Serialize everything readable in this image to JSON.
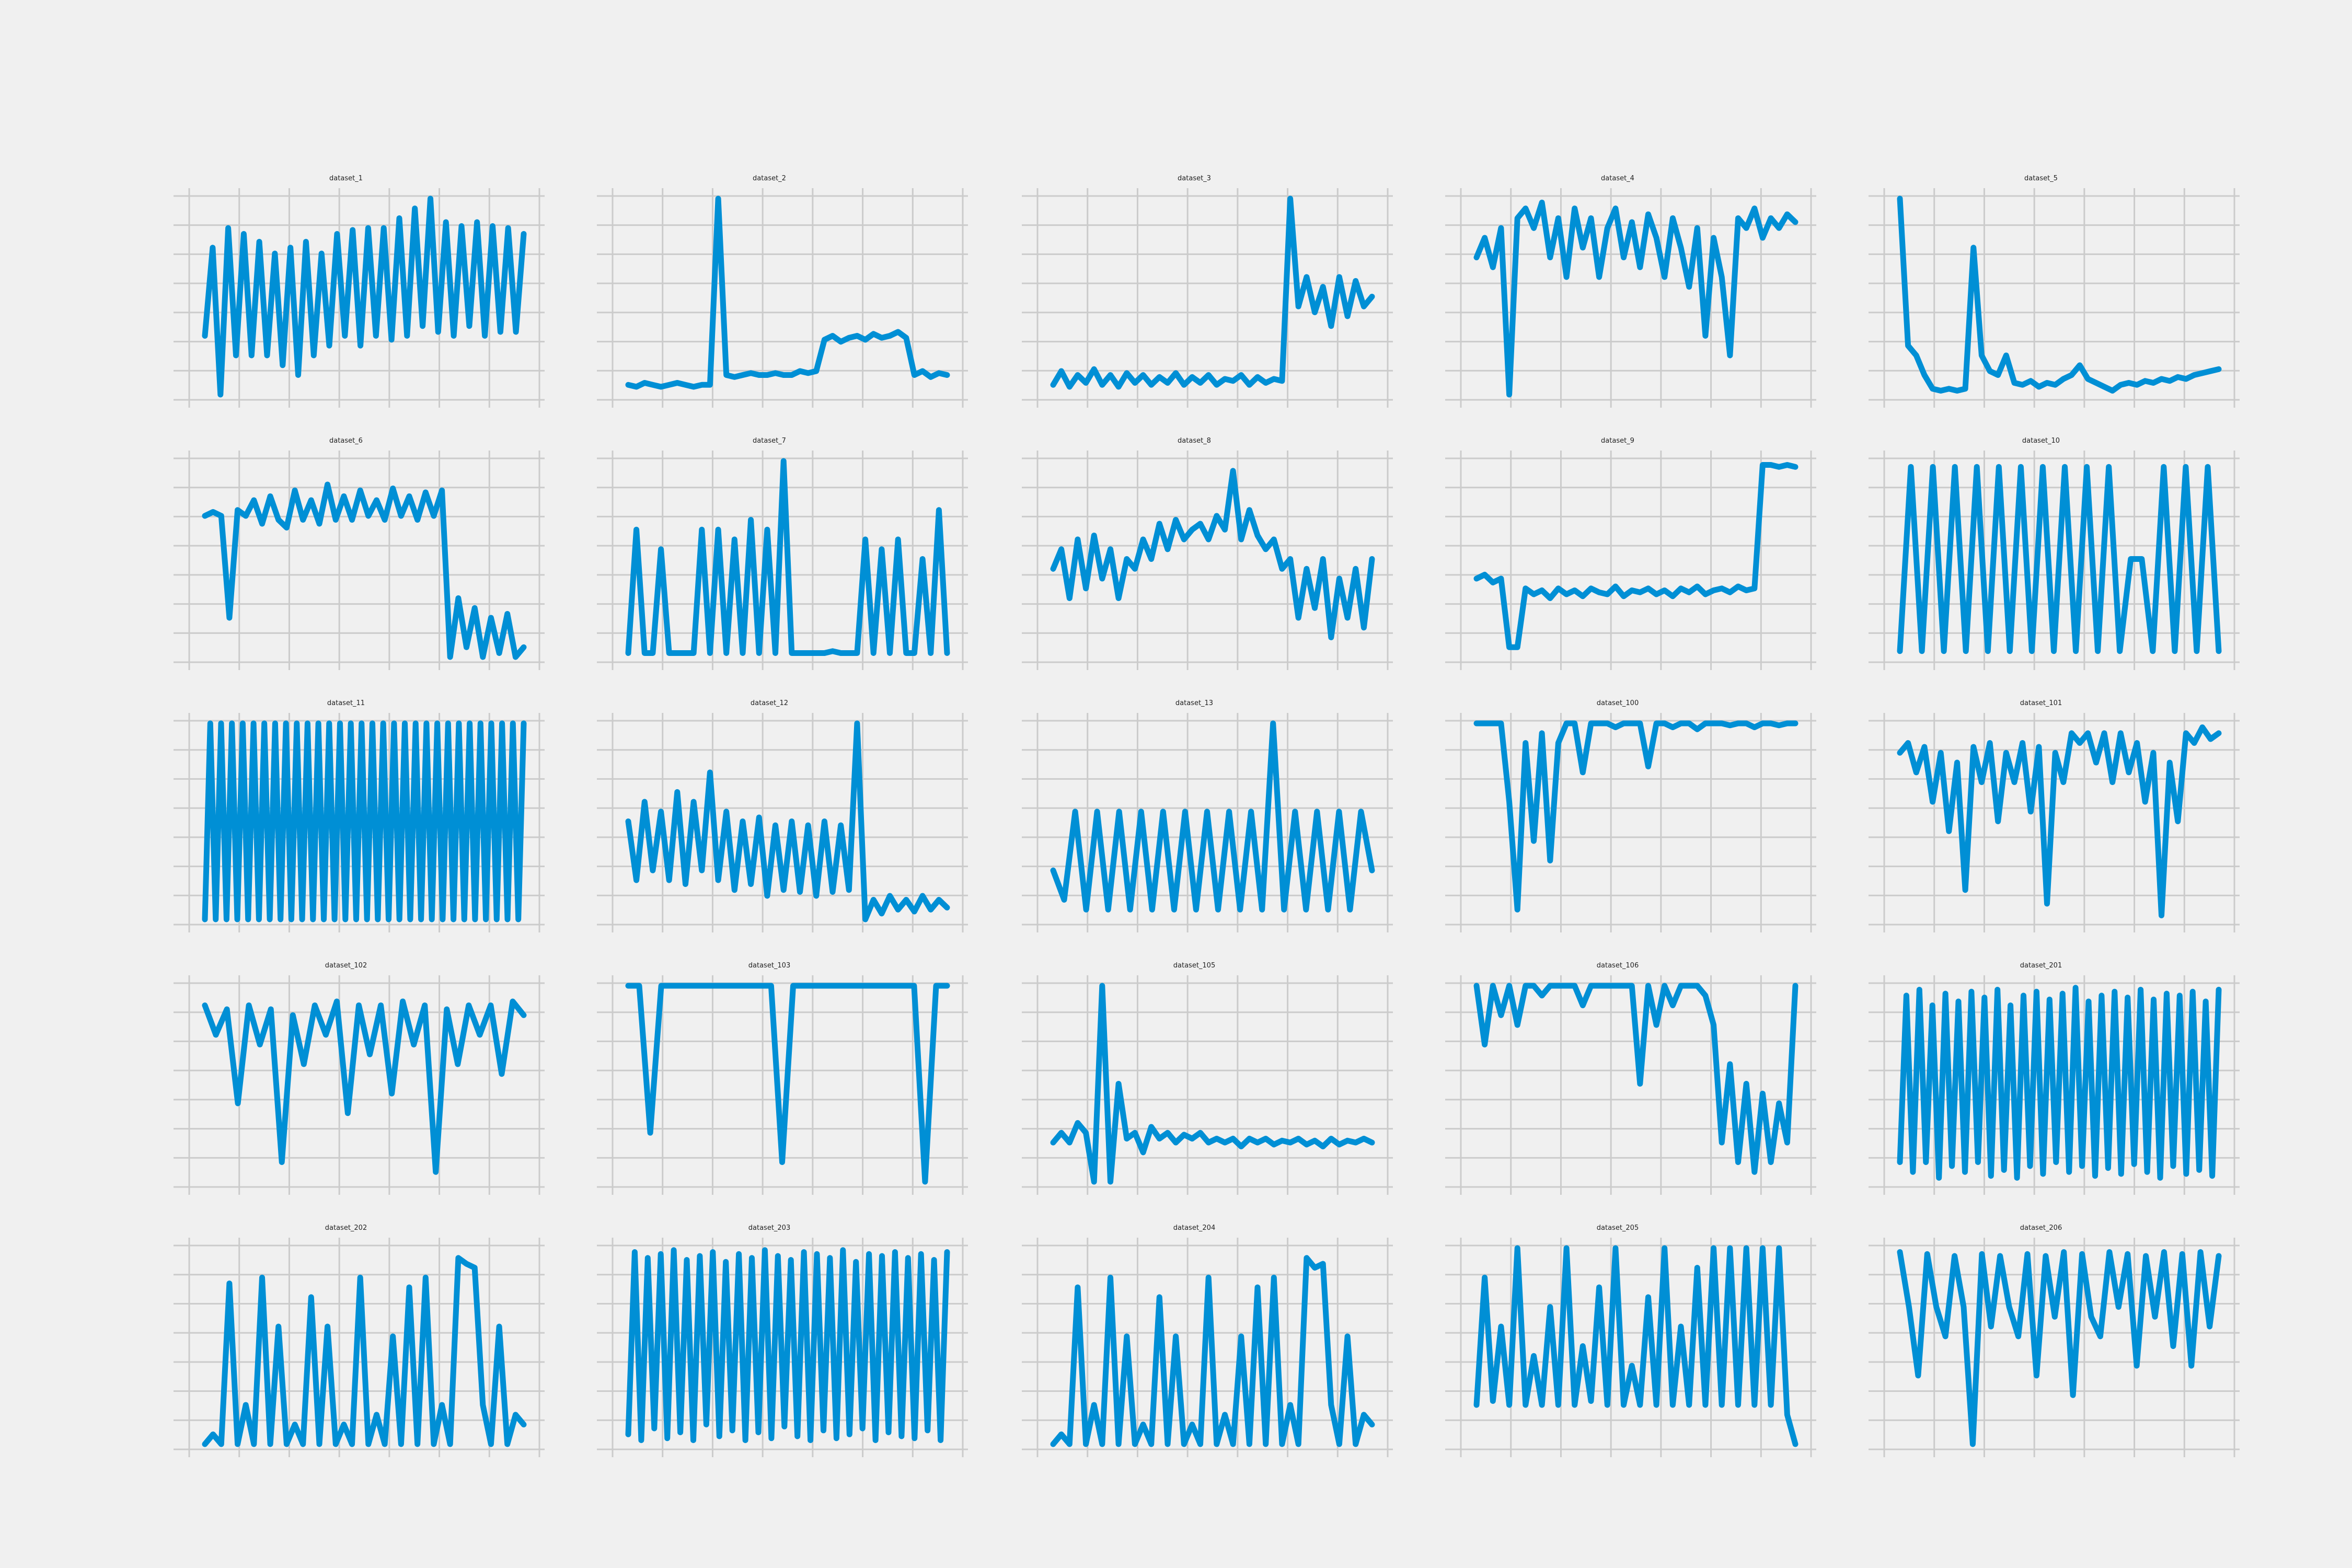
{
  "style": {
    "background": "#f0f0f0",
    "line_color": "#008fd5",
    "grid_color": "#cbcbcb"
  },
  "chart_data": [
    {
      "type": "line",
      "title": "dataset_1",
      "grid": true,
      "y": [
        0.3,
        0.75,
        0.0,
        0.85,
        0.2,
        0.82,
        0.2,
        0.78,
        0.2,
        0.72,
        0.15,
        0.75,
        0.1,
        0.78,
        0.2,
        0.72,
        0.25,
        0.82,
        0.3,
        0.84,
        0.25,
        0.85,
        0.3,
        0.85,
        0.28,
        0.9,
        0.3,
        0.95,
        0.35,
        1.0,
        0.32,
        0.88,
        0.3,
        0.86,
        0.35,
        0.88,
        0.3,
        0.86,
        0.32,
        0.85,
        0.32,
        0.82
      ]
    },
    {
      "type": "line",
      "title": "dataset_2",
      "grid": true,
      "y": [
        0.05,
        0.04,
        0.06,
        0.05,
        0.04,
        0.05,
        0.06,
        0.05,
        0.04,
        0.05,
        0.05,
        1.0,
        0.1,
        0.09,
        0.1,
        0.11,
        0.1,
        0.1,
        0.11,
        0.1,
        0.1,
        0.12,
        0.11,
        0.12,
        0.28,
        0.3,
        0.27,
        0.29,
        0.3,
        0.28,
        0.31,
        0.29,
        0.3,
        0.32,
        0.29,
        0.1,
        0.12,
        0.09,
        0.11,
        0.1
      ]
    },
    {
      "type": "line",
      "title": "dataset_3",
      "grid": true,
      "y": [
        0.05,
        0.12,
        0.04,
        0.1,
        0.06,
        0.13,
        0.05,
        0.1,
        0.04,
        0.11,
        0.06,
        0.1,
        0.05,
        0.09,
        0.06,
        0.11,
        0.05,
        0.09,
        0.06,
        0.1,
        0.05,
        0.08,
        0.07,
        0.1,
        0.05,
        0.09,
        0.06,
        0.08,
        0.07,
        1.0,
        0.45,
        0.6,
        0.42,
        0.55,
        0.35,
        0.6,
        0.4,
        0.58,
        0.45,
        0.5
      ]
    },
    {
      "type": "line",
      "title": "dataset_4",
      "grid": true,
      "y": [
        0.7,
        0.8,
        0.65,
        0.85,
        0.0,
        0.9,
        0.95,
        0.85,
        0.98,
        0.7,
        0.9,
        0.6,
        0.95,
        0.75,
        0.9,
        0.6,
        0.85,
        0.95,
        0.7,
        0.88,
        0.65,
        0.92,
        0.8,
        0.6,
        0.9,
        0.75,
        0.55,
        0.85,
        0.3,
        0.8,
        0.6,
        0.2,
        0.9,
        0.85,
        0.95,
        0.8,
        0.9,
        0.85,
        0.92,
        0.88
      ]
    },
    {
      "type": "line",
      "title": "dataset_5",
      "grid": true,
      "y": [
        1.0,
        0.25,
        0.2,
        0.1,
        0.03,
        0.02,
        0.03,
        0.02,
        0.03,
        0.75,
        0.2,
        0.12,
        0.1,
        0.2,
        0.06,
        0.05,
        0.07,
        0.04,
        0.06,
        0.05,
        0.08,
        0.1,
        0.15,
        0.08,
        0.06,
        0.04,
        0.02,
        0.05,
        0.06,
        0.05,
        0.07,
        0.06,
        0.08,
        0.07,
        0.09,
        0.08,
        0.1,
        0.11,
        0.12,
        0.13
      ]
    },
    {
      "type": "line",
      "title": "dataset_6",
      "grid": true,
      "y": [
        0.72,
        0.74,
        0.72,
        0.2,
        0.75,
        0.72,
        0.8,
        0.68,
        0.82,
        0.7,
        0.66,
        0.85,
        0.7,
        0.8,
        0.68,
        0.88,
        0.7,
        0.82,
        0.7,
        0.85,
        0.72,
        0.8,
        0.7,
        0.86,
        0.72,
        0.82,
        0.7,
        0.84,
        0.72,
        0.85,
        0.0,
        0.3,
        0.05,
        0.25,
        0.0,
        0.2,
        0.02,
        0.22,
        0.0,
        0.05
      ]
    },
    {
      "type": "line",
      "title": "dataset_7",
      "grid": true,
      "y": [
        0.02,
        0.65,
        0.02,
        0.02,
        0.55,
        0.02,
        0.02,
        0.02,
        0.02,
        0.65,
        0.02,
        0.65,
        0.02,
        0.6,
        0.02,
        0.7,
        0.02,
        0.65,
        0.02,
        1.0,
        0.02,
        0.02,
        0.02,
        0.02,
        0.02,
        0.03,
        0.02,
        0.02,
        0.02,
        0.6,
        0.02,
        0.55,
        0.02,
        0.6,
        0.02,
        0.02,
        0.5,
        0.02,
        0.75,
        0.02
      ]
    },
    {
      "type": "line",
      "title": "dataset_8",
      "grid": true,
      "y": [
        0.45,
        0.55,
        0.3,
        0.6,
        0.35,
        0.62,
        0.4,
        0.55,
        0.3,
        0.5,
        0.45,
        0.6,
        0.5,
        0.68,
        0.55,
        0.7,
        0.6,
        0.65,
        0.68,
        0.6,
        0.72,
        0.65,
        0.95,
        0.6,
        0.75,
        0.62,
        0.55,
        0.6,
        0.45,
        0.5,
        0.2,
        0.45,
        0.25,
        0.5,
        0.1,
        0.4,
        0.2,
        0.45,
        0.15,
        0.5
      ]
    },
    {
      "type": "line",
      "title": "dataset_9",
      "grid": true,
      "y": [
        0.4,
        0.42,
        0.38,
        0.4,
        0.05,
        0.05,
        0.35,
        0.32,
        0.34,
        0.3,
        0.35,
        0.32,
        0.34,
        0.31,
        0.35,
        0.33,
        0.32,
        0.36,
        0.31,
        0.34,
        0.33,
        0.35,
        0.32,
        0.34,
        0.31,
        0.35,
        0.33,
        0.36,
        0.32,
        0.34,
        0.35,
        0.33,
        0.36,
        0.34,
        0.35,
        0.98,
        0.98,
        0.97,
        0.98,
        0.97
      ]
    },
    {
      "type": "line",
      "title": "dataset_10",
      "grid": true,
      "y": [
        0.03,
        0.97,
        0.03,
        0.97,
        0.03,
        0.97,
        0.03,
        0.97,
        0.03,
        0.97,
        0.03,
        0.97,
        0.03,
        0.97,
        0.03,
        0.97,
        0.03,
        0.97,
        0.03,
        0.97,
        0.03,
        0.5,
        0.5,
        0.03,
        0.97,
        0.03,
        0.97,
        0.03,
        0.97,
        0.03
      ]
    },
    {
      "type": "line",
      "title": "dataset_11",
      "grid": true,
      "y": [
        0,
        1,
        0,
        1,
        0,
        1,
        0,
        1,
        0,
        1,
        0,
        1,
        0,
        1,
        0,
        1,
        0,
        1,
        0,
        1,
        0,
        1,
        0,
        1,
        0,
        1,
        0,
        1,
        0,
        1,
        0,
        1,
        0,
        1,
        0,
        1,
        0,
        1,
        0,
        1,
        0,
        1,
        0,
        1,
        0,
        1,
        0,
        1,
        0,
        1,
        0,
        1,
        0,
        1,
        0,
        1,
        0,
        1,
        0,
        1
      ]
    },
    {
      "type": "line",
      "title": "dataset_12",
      "grid": true,
      "y": [
        0.5,
        0.2,
        0.6,
        0.25,
        0.55,
        0.2,
        0.65,
        0.18,
        0.6,
        0.25,
        0.75,
        0.2,
        0.55,
        0.15,
        0.5,
        0.18,
        0.52,
        0.12,
        0.48,
        0.15,
        0.5,
        0.14,
        0.48,
        0.12,
        0.5,
        0.14,
        0.48,
        0.15,
        1.0,
        0.0,
        0.1,
        0.03,
        0.12,
        0.05,
        0.1,
        0.04,
        0.12,
        0.05,
        0.1,
        0.06
      ]
    },
    {
      "type": "line",
      "title": "dataset_13",
      "grid": true,
      "y": [
        0.25,
        0.1,
        0.55,
        0.05,
        0.55,
        0.05,
        0.55,
        0.05,
        0.55,
        0.05,
        0.55,
        0.05,
        0.55,
        0.05,
        0.55,
        0.05,
        0.55,
        0.05,
        0.55,
        0.05,
        1.0,
        0.05,
        0.55,
        0.05,
        0.55,
        0.05,
        0.55,
        0.05,
        0.55,
        0.25
      ]
    },
    {
      "type": "line",
      "title": "dataset_100",
      "grid": true,
      "y": [
        1.0,
        1.0,
        1.0,
        1.0,
        0.6,
        0.05,
        0.9,
        0.4,
        0.95,
        0.3,
        0.9,
        1.0,
        1.0,
        0.75,
        1.0,
        1.0,
        1.0,
        0.98,
        1.0,
        1.0,
        1.0,
        0.78,
        1.0,
        1.0,
        0.98,
        1.0,
        1.0,
        0.97,
        1.0,
        1.0,
        1.0,
        0.99,
        1.0,
        1.0,
        0.98,
        1.0,
        1.0,
        0.99,
        1.0,
        1.0
      ]
    },
    {
      "type": "line",
      "title": "dataset_101",
      "grid": true,
      "y": [
        0.85,
        0.9,
        0.75,
        0.88,
        0.6,
        0.85,
        0.45,
        0.8,
        0.15,
        0.88,
        0.7,
        0.9,
        0.5,
        0.85,
        0.7,
        0.9,
        0.55,
        0.88,
        0.08,
        0.85,
        0.7,
        0.95,
        0.9,
        0.95,
        0.8,
        0.95,
        0.7,
        0.95,
        0.75,
        0.9,
        0.6,
        0.85,
        0.02,
        0.8,
        0.5,
        0.95,
        0.9,
        0.98,
        0.92,
        0.95
      ]
    },
    {
      "type": "line",
      "title": "dataset_102",
      "grid": true,
      "y": [
        0.9,
        0.75,
        0.88,
        0.4,
        0.9,
        0.7,
        0.88,
        0.1,
        0.85,
        0.6,
        0.9,
        0.75,
        0.92,
        0.35,
        0.9,
        0.65,
        0.9,
        0.45,
        0.92,
        0.7,
        0.9,
        0.05,
        0.88,
        0.6,
        0.9,
        0.75,
        0.9,
        0.55,
        0.92,
        0.85
      ]
    },
    {
      "type": "line",
      "title": "dataset_103",
      "grid": true,
      "y": [
        1.0,
        1.0,
        0.25,
        1.0,
        1.0,
        1.0,
        1.0,
        1.0,
        1.0,
        1.0,
        1.0,
        1.0,
        1.0,
        1.0,
        0.1,
        1.0,
        1.0,
        1.0,
        1.0,
        1.0,
        1.0,
        1.0,
        1.0,
        1.0,
        1.0,
        1.0,
        1.0,
        0.0,
        1.0,
        1.0
      ]
    },
    {
      "type": "line",
      "title": "dataset_105",
      "grid": true,
      "y": [
        0.2,
        0.25,
        0.2,
        0.3,
        0.25,
        0.0,
        1.0,
        0.0,
        0.5,
        0.22,
        0.25,
        0.15,
        0.28,
        0.22,
        0.25,
        0.2,
        0.24,
        0.22,
        0.25,
        0.2,
        0.22,
        0.2,
        0.22,
        0.18,
        0.22,
        0.2,
        0.22,
        0.19,
        0.21,
        0.2,
        0.22,
        0.19,
        0.21,
        0.18,
        0.22,
        0.19,
        0.21,
        0.2,
        0.22,
        0.2
      ]
    },
    {
      "type": "line",
      "title": "dataset_106",
      "grid": true,
      "y": [
        1.0,
        0.7,
        1.0,
        0.85,
        1.0,
        0.8,
        1.0,
        1.0,
        0.95,
        1.0,
        1.0,
        1.0,
        1.0,
        0.9,
        1.0,
        1.0,
        1.0,
        1.0,
        1.0,
        1.0,
        0.5,
        1.0,
        0.8,
        1.0,
        0.9,
        1.0,
        1.0,
        1.0,
        0.95,
        0.8,
        0.2,
        0.6,
        0.1,
        0.5,
        0.05,
        0.45,
        0.1,
        0.4,
        0.2,
        1.0
      ]
    },
    {
      "type": "line",
      "title": "dataset_201",
      "grid": true,
      "y": [
        0.1,
        0.95,
        0.05,
        0.98,
        0.1,
        0.9,
        0.02,
        0.96,
        0.08,
        0.92,
        0.05,
        0.97,
        0.1,
        0.94,
        0.03,
        0.98,
        0.06,
        0.9,
        0.02,
        0.95,
        0.08,
        0.97,
        0.04,
        0.93,
        0.1,
        0.96,
        0.05,
        0.99,
        0.08,
        0.92,
        0.03,
        0.95,
        0.07,
        0.97,
        0.04,
        0.94,
        0.09,
        0.98,
        0.05,
        0.93,
        0.02,
        0.96,
        0.08,
        0.95,
        0.04,
        0.97,
        0.06,
        0.92,
        0.03,
        0.98
      ]
    },
    {
      "type": "line",
      "title": "dataset_202",
      "grid": true,
      "y": [
        0.0,
        0.05,
        0.0,
        0.82,
        0.0,
        0.2,
        0.0,
        0.85,
        0.0,
        0.6,
        0.0,
        0.1,
        0.0,
        0.75,
        0.0,
        0.6,
        0.0,
        0.1,
        0.0,
        0.85,
        0.0,
        0.15,
        0.0,
        0.55,
        0.0,
        0.8,
        0.0,
        0.85,
        0.0,
        0.2,
        0.0,
        0.95,
        0.92,
        0.9,
        0.2,
        0.0,
        0.6,
        0.0,
        0.15,
        0.1
      ]
    },
    {
      "type": "line",
      "title": "dataset_203",
      "grid": true,
      "y": [
        0.05,
        0.98,
        0.02,
        0.95,
        0.08,
        0.97,
        0.03,
        0.99,
        0.06,
        0.94,
        0.02,
        0.96,
        0.1,
        0.98,
        0.04,
        0.93,
        0.07,
        0.97,
        0.02,
        0.95,
        0.06,
        0.99,
        0.03,
        0.96,
        0.09,
        0.94,
        0.04,
        0.98,
        0.02,
        0.97,
        0.07,
        0.95,
        0.03,
        0.99,
        0.05,
        0.93,
        0.08,
        0.97,
        0.02,
        0.96,
        0.06,
        0.98,
        0.04,
        0.95,
        0.03,
        0.97,
        0.07,
        0.94,
        0.02,
        0.98
      ]
    },
    {
      "type": "line",
      "title": "dataset_204",
      "grid": true,
      "y": [
        0.0,
        0.05,
        0.0,
        0.8,
        0.0,
        0.2,
        0.0,
        0.85,
        0.0,
        0.55,
        0.0,
        0.1,
        0.0,
        0.75,
        0.0,
        0.55,
        0.0,
        0.1,
        0.0,
        0.85,
        0.0,
        0.15,
        0.0,
        0.55,
        0.0,
        0.8,
        0.0,
        0.85,
        0.0,
        0.2,
        0.0,
        0.95,
        0.9,
        0.92,
        0.2,
        0.0,
        0.55,
        0.0,
        0.15,
        0.1
      ]
    },
    {
      "type": "line",
      "title": "dataset_205",
      "grid": true,
      "y": [
        0.2,
        0.85,
        0.22,
        0.6,
        0.2,
        1.0,
        0.2,
        0.45,
        0.2,
        0.7,
        0.2,
        1.0,
        0.2,
        0.5,
        0.22,
        0.8,
        0.2,
        1.0,
        0.2,
        0.4,
        0.2,
        0.75,
        0.2,
        1.0,
        0.2,
        0.6,
        0.2,
        0.9,
        0.2,
        1.0,
        0.2,
        1.0,
        0.2,
        1.0,
        0.2,
        1.0,
        0.2,
        1.0,
        0.15,
        0.0
      ]
    },
    {
      "type": "line",
      "title": "dataset_206",
      "grid": true,
      "y": [
        0.98,
        0.7,
        0.35,
        0.97,
        0.7,
        0.55,
        0.96,
        0.7,
        0.0,
        0.97,
        0.6,
        0.96,
        0.7,
        0.55,
        0.97,
        0.35,
        0.96,
        0.65,
        0.98,
        0.25,
        0.97,
        0.65,
        0.55,
        0.98,
        0.7,
        0.97,
        0.4,
        0.96,
        0.65,
        0.98,
        0.5,
        0.97,
        0.4,
        0.98,
        0.6,
        0.96
      ]
    }
  ]
}
